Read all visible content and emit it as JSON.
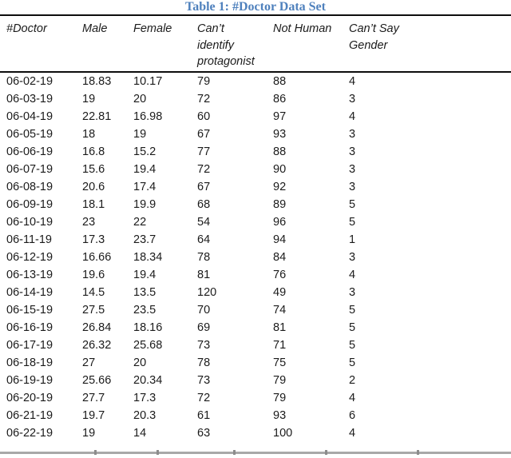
{
  "caption": "Table 1: #Doctor Data Set",
  "table": {
    "columns": [
      "#Doctor",
      "Male",
      "Female",
      "Can’t identify protagonist",
      "Not Human",
      "Can’t Say Gender"
    ],
    "rows": [
      [
        "06-02-19",
        "18.83",
        "10.17",
        "79",
        "88",
        "4"
      ],
      [
        "06-03-19",
        "19",
        "20",
        "72",
        "86",
        "3"
      ],
      [
        "06-04-19",
        "22.81",
        "16.98",
        "60",
        "97",
        "4"
      ],
      [
        "06-05-19",
        "18",
        "19",
        "67",
        "93",
        "3"
      ],
      [
        "06-06-19",
        "16.8",
        "15.2",
        "77",
        "88",
        "3"
      ],
      [
        "06-07-19",
        "15.6",
        "19.4",
        "72",
        "90",
        "3"
      ],
      [
        "06-08-19",
        "20.6",
        "17.4",
        "67",
        "92",
        "3"
      ],
      [
        "06-09-19",
        "18.1",
        "19.9",
        "68",
        "89",
        "5"
      ],
      [
        "06-10-19",
        "23",
        "22",
        "54",
        "96",
        "5"
      ],
      [
        "06-11-19",
        "17.3",
        "23.7",
        "64",
        "94",
        "1"
      ],
      [
        "06-12-19",
        "16.66",
        "18.34",
        "78",
        "84",
        "3"
      ],
      [
        "06-13-19",
        "19.6",
        "19.4",
        "81",
        "76",
        "4"
      ],
      [
        "06-14-19",
        "14.5",
        "13.5",
        "120",
        "49",
        "3"
      ],
      [
        "06-15-19",
        "27.5",
        "23.5",
        "70",
        "74",
        "5"
      ],
      [
        "06-16-19",
        "26.84",
        "18.16",
        "69",
        "81",
        "5"
      ],
      [
        "06-17-19",
        "26.32",
        "25.68",
        "73",
        "71",
        "5"
      ],
      [
        "06-18-19",
        "27",
        "20",
        "78",
        "75",
        "5"
      ],
      [
        "06-19-19",
        "25.66",
        "20.34",
        "73",
        "79",
        "2"
      ],
      [
        "06-20-19",
        "27.7",
        "17.3",
        "72",
        "79",
        "4"
      ],
      [
        "06-21-19",
        "19.7",
        "20.3",
        "61",
        "93",
        "6"
      ],
      [
        "06-22-19",
        "19",
        "14",
        "63",
        "100",
        "4"
      ]
    ]
  },
  "colors": {
    "caption_blue": "#4F81BD",
    "text": "#1b1b1b",
    "rule_dark": "#0d0d0d",
    "next_table_border_gray": "#a8a8a8",
    "tick_gray": "#8c8c8c"
  }
}
